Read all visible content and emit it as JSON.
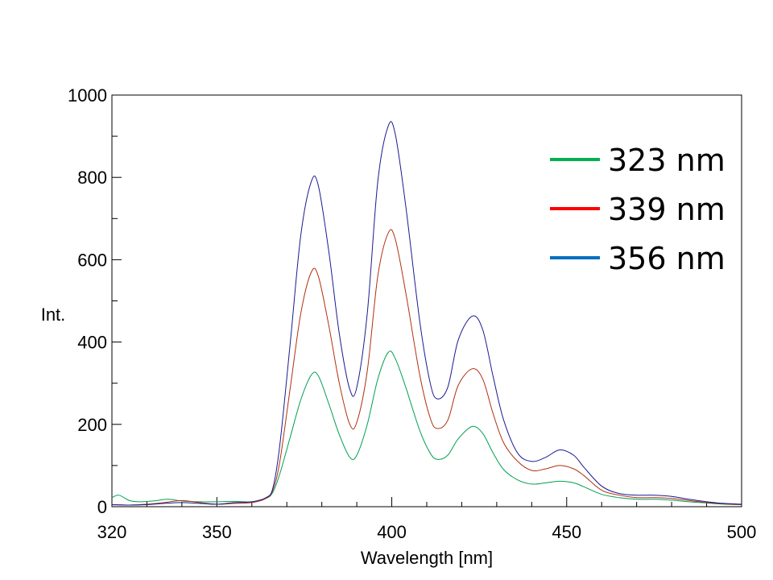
{
  "chart_data": {
    "type": "line",
    "title": "",
    "xlabel": "Wavelength [nm]",
    "ylabel": "Int.",
    "xlim": [
      320,
      500
    ],
    "ylim": [
      0,
      1000
    ],
    "x_ticks": [
      320,
      350,
      400,
      450,
      500
    ],
    "y_ticks": [
      0,
      200,
      400,
      600,
      800,
      1000
    ],
    "grid": false,
    "legend_position": "top-right",
    "series": [
      {
        "name": "323 nm",
        "color": "#00a050",
        "legend_color": "#00b050",
        "points": [
          [
            320,
            22
          ],
          [
            322,
            28
          ],
          [
            325,
            15
          ],
          [
            328,
            12
          ],
          [
            332,
            14
          ],
          [
            336,
            18
          ],
          [
            340,
            14
          ],
          [
            345,
            12
          ],
          [
            350,
            12
          ],
          [
            355,
            13
          ],
          [
            360,
            12
          ],
          [
            364,
            20
          ],
          [
            366,
            35
          ],
          [
            368,
            80
          ],
          [
            371,
            170
          ],
          [
            374,
            260
          ],
          [
            377,
            320
          ],
          [
            379,
            318
          ],
          [
            382,
            250
          ],
          [
            385,
            175
          ],
          [
            388,
            120
          ],
          [
            390,
            125
          ],
          [
            393,
            200
          ],
          [
            396,
            310
          ],
          [
            399,
            375
          ],
          [
            401,
            360
          ],
          [
            404,
            290
          ],
          [
            408,
            185
          ],
          [
            411,
            130
          ],
          [
            413,
            115
          ],
          [
            416,
            125
          ],
          [
            419,
            165
          ],
          [
            423,
            195
          ],
          [
            426,
            178
          ],
          [
            429,
            130
          ],
          [
            432,
            90
          ],
          [
            436,
            65
          ],
          [
            440,
            55
          ],
          [
            444,
            58
          ],
          [
            448,
            62
          ],
          [
            452,
            58
          ],
          [
            455,
            48
          ],
          [
            460,
            30
          ],
          [
            465,
            22
          ],
          [
            470,
            18
          ],
          [
            475,
            18
          ],
          [
            480,
            16
          ],
          [
            485,
            12
          ],
          [
            490,
            9
          ],
          [
            495,
            6
          ],
          [
            500,
            5
          ]
        ]
      },
      {
        "name": "339 nm",
        "color": "#b03010",
        "legend_color": "#ff0000",
        "points": [
          [
            320,
            5
          ],
          [
            325,
            4
          ],
          [
            330,
            6
          ],
          [
            335,
            10
          ],
          [
            340,
            15
          ],
          [
            345,
            10
          ],
          [
            350,
            6
          ],
          [
            355,
            8
          ],
          [
            360,
            10
          ],
          [
            364,
            20
          ],
          [
            366,
            40
          ],
          [
            368,
            110
          ],
          [
            371,
            290
          ],
          [
            374,
            470
          ],
          [
            377,
            570
          ],
          [
            379,
            560
          ],
          [
            382,
            440
          ],
          [
            385,
            300
          ],
          [
            388,
            200
          ],
          [
            390,
            205
          ],
          [
            393,
            330
          ],
          [
            396,
            560
          ],
          [
            399,
            665
          ],
          [
            401,
            650
          ],
          [
            404,
            520
          ],
          [
            408,
            320
          ],
          [
            411,
            215
          ],
          [
            413,
            190
          ],
          [
            416,
            210
          ],
          [
            419,
            295
          ],
          [
            423,
            335
          ],
          [
            426,
            310
          ],
          [
            429,
            225
          ],
          [
            432,
            155
          ],
          [
            436,
            110
          ],
          [
            440,
            88
          ],
          [
            444,
            92
          ],
          [
            448,
            100
          ],
          [
            452,
            92
          ],
          [
            455,
            75
          ],
          [
            460,
            40
          ],
          [
            465,
            28
          ],
          [
            470,
            22
          ],
          [
            475,
            22
          ],
          [
            480,
            20
          ],
          [
            485,
            15
          ],
          [
            490,
            10
          ],
          [
            495,
            7
          ],
          [
            500,
            5
          ]
        ]
      },
      {
        "name": "356 nm",
        "color": "#1a1a90",
        "legend_color": "#0070c0",
        "points": [
          [
            320,
            5
          ],
          [
            325,
            4
          ],
          [
            330,
            5
          ],
          [
            335,
            8
          ],
          [
            340,
            10
          ],
          [
            345,
            8
          ],
          [
            350,
            6
          ],
          [
            355,
            10
          ],
          [
            360,
            12
          ],
          [
            364,
            22
          ],
          [
            366,
            45
          ],
          [
            368,
            150
          ],
          [
            371,
            400
          ],
          [
            374,
            660
          ],
          [
            377,
            790
          ],
          [
            379,
            780
          ],
          [
            382,
            620
          ],
          [
            385,
            420
          ],
          [
            388,
            285
          ],
          [
            390,
            290
          ],
          [
            393,
            470
          ],
          [
            396,
            790
          ],
          [
            399,
            925
          ],
          [
            401,
            905
          ],
          [
            404,
            730
          ],
          [
            408,
            450
          ],
          [
            411,
            300
          ],
          [
            413,
            262
          ],
          [
            416,
            290
          ],
          [
            419,
            405
          ],
          [
            423,
            463
          ],
          [
            426,
            430
          ],
          [
            429,
            315
          ],
          [
            432,
            210
          ],
          [
            436,
            130
          ],
          [
            440,
            110
          ],
          [
            444,
            120
          ],
          [
            448,
            138
          ],
          [
            452,
            125
          ],
          [
            455,
            95
          ],
          [
            460,
            50
          ],
          [
            465,
            32
          ],
          [
            470,
            28
          ],
          [
            475,
            28
          ],
          [
            480,
            25
          ],
          [
            485,
            18
          ],
          [
            490,
            12
          ],
          [
            495,
            8
          ],
          [
            500,
            6
          ]
        ]
      }
    ]
  }
}
